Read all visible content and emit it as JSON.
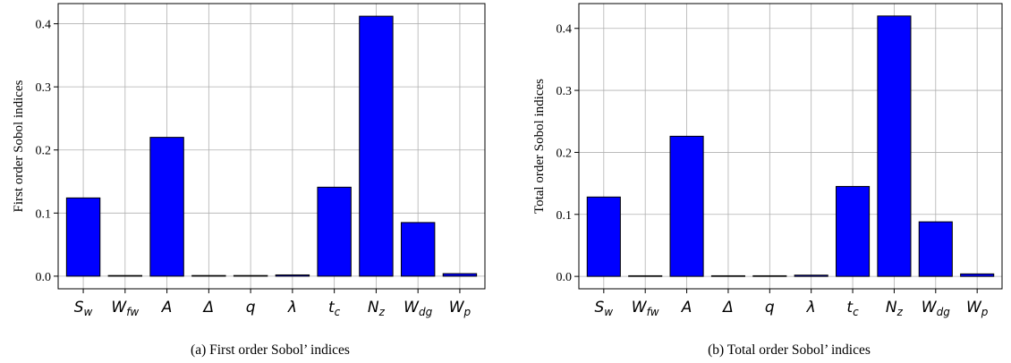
{
  "chart_data": [
    {
      "type": "bar",
      "caption": "(a)  First order Sobol’ indices",
      "ylabel": "First order Sobol indices",
      "categories": [
        "Sw",
        "Wfw",
        "A",
        "Δ",
        "q",
        "λ",
        "tc",
        "Nz",
        "Wdg",
        "Wp"
      ],
      "values": [
        0.124,
        0.001,
        0.22,
        0.001,
        0.001,
        0.002,
        0.141,
        0.412,
        0.085,
        0.004
      ],
      "yticks": [
        "0.0",
        "0.1",
        "0.2",
        "0.3",
        "0.4"
      ],
      "ylim": [
        -0.02,
        0.432
      ],
      "grid": true,
      "bar_color": "#0000ff"
    },
    {
      "type": "bar",
      "caption": "(b)  Total order Sobol’ indices",
      "ylabel": "Total order Sobol indices",
      "categories": [
        "Sw",
        "Wfw",
        "A",
        "Δ",
        "q",
        "λ",
        "tc",
        "Nz",
        "Wdg",
        "Wp"
      ],
      "values": [
        0.128,
        0.001,
        0.226,
        0.001,
        0.001,
        0.002,
        0.145,
        0.42,
        0.088,
        0.004
      ],
      "yticks": [
        "0.0",
        "0.1",
        "0.2",
        "0.3",
        "0.4"
      ],
      "ylim": [
        -0.02,
        0.44
      ],
      "grid": true,
      "bar_color": "#0000ff"
    }
  ],
  "tick_labels": [
    {
      "base": "S",
      "sub": "w"
    },
    {
      "base": "W",
      "sub": "fw"
    },
    {
      "base": "A",
      "sub": ""
    },
    {
      "base": "Δ",
      "sub": ""
    },
    {
      "base": "q",
      "sub": ""
    },
    {
      "base": "λ",
      "sub": ""
    },
    {
      "base": "t",
      "sub": "c"
    },
    {
      "base": "N",
      "sub": "z"
    },
    {
      "base": "W",
      "sub": "dg"
    },
    {
      "base": "W",
      "sub": "p"
    }
  ]
}
